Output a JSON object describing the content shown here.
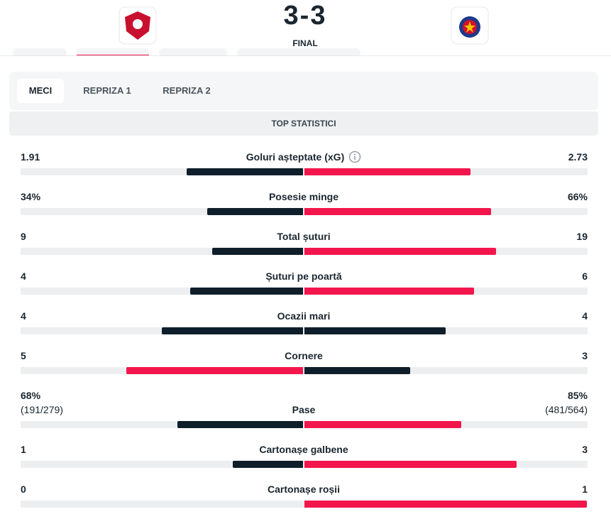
{
  "header": {
    "score": {
      "home": 3,
      "separator": "-",
      "away": 3
    },
    "status": "FINAL"
  },
  "tabs": [
    "MECI",
    "REPRIZA 1",
    "REPRIZA 2"
  ],
  "section_title": "TOP STATISTICI",
  "stats": [
    {
      "label": "Goluri așteptate (xG)",
      "home": 1.91,
      "away": 2.73
    },
    {
      "label": "Posesie minge",
      "home": {
        "value": 34,
        "label": "34%"
      },
      "away": {
        "value": 66,
        "label": "66%"
      }
    },
    {
      "label": "Total șuturi",
      "home": 9,
      "away": 19
    },
    {
      "label": "Șuturi pe poartă",
      "home": 4,
      "away": 6
    },
    {
      "label": "Ocazii mari",
      "home": 4,
      "away": 4
    },
    {
      "label": "Cornere",
      "home": 5,
      "away": 3
    },
    {
      "label": "Pase",
      "home": {
        "value": 68,
        "label": "68%"
      },
      "away": {
        "value": 85,
        "label": "85%"
      },
      "home_detail": "(191/279)",
      "away_detail": "(481/564)"
    },
    {
      "label": "Cartonașe galbene",
      "home": 1,
      "away": 3
    },
    {
      "label": "Cartonașe roșii",
      "home": 0,
      "away": 1
    }
  ]
}
